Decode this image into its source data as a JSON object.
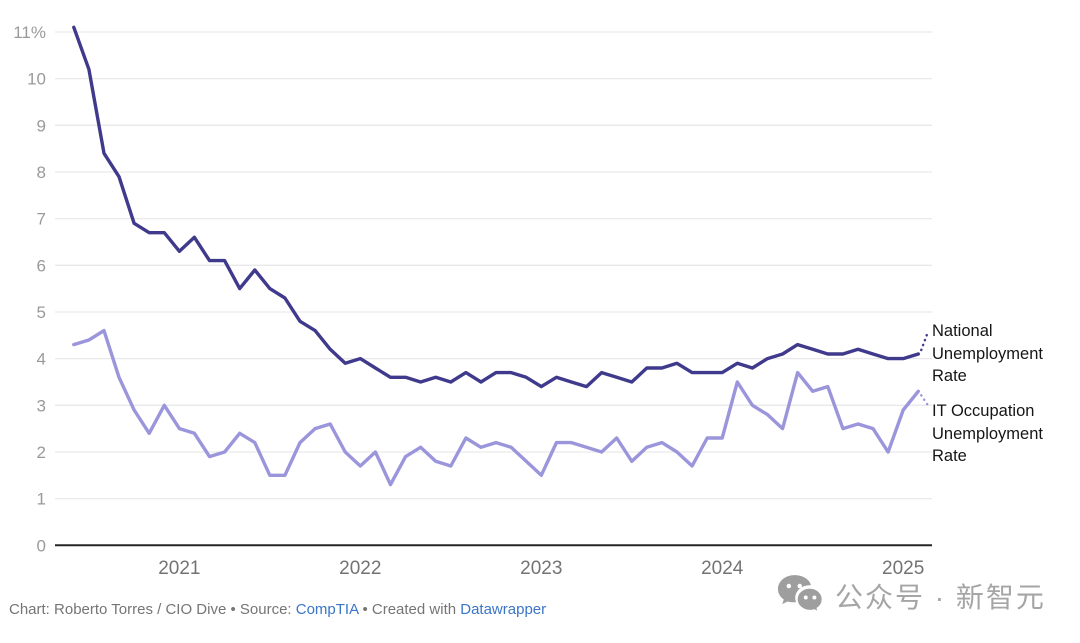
{
  "chart_data": {
    "type": "line",
    "title": "",
    "xlabel": "",
    "ylabel": "",
    "ylim": [
      0,
      11
    ],
    "grid": "horizontal",
    "legend_position": "right-edge-labels",
    "x_tick_labels": [
      "2021",
      "2022",
      "2023",
      "2024",
      "2025"
    ],
    "y_tick_labels": [
      "0",
      "1",
      "2",
      "3",
      "4",
      "5",
      "6",
      "7",
      "8",
      "9",
      "10",
      "11%"
    ],
    "months": [
      "2020-06",
      "2020-07",
      "2020-08",
      "2020-09",
      "2020-10",
      "2020-11",
      "2020-12",
      "2021-01",
      "2021-02",
      "2021-03",
      "2021-04",
      "2021-05",
      "2021-06",
      "2021-07",
      "2021-08",
      "2021-09",
      "2021-10",
      "2021-11",
      "2021-12",
      "2022-01",
      "2022-02",
      "2022-03",
      "2022-04",
      "2022-05",
      "2022-06",
      "2022-07",
      "2022-08",
      "2022-09",
      "2022-10",
      "2022-11",
      "2022-12",
      "2023-01",
      "2023-02",
      "2023-03",
      "2023-04",
      "2023-05",
      "2023-06",
      "2023-07",
      "2023-08",
      "2023-09",
      "2023-10",
      "2023-11",
      "2023-12",
      "2024-01",
      "2024-02",
      "2024-03",
      "2024-04",
      "2024-05",
      "2024-06",
      "2024-07",
      "2024-08",
      "2024-09",
      "2024-10",
      "2024-11",
      "2024-12",
      "2025-01",
      "2025-02"
    ],
    "series": [
      {
        "name": "National Unemployment Rate",
        "color": "#3f3a8c",
        "values": [
          11.1,
          10.2,
          8.4,
          7.9,
          6.9,
          6.7,
          6.7,
          6.3,
          6.6,
          6.1,
          6.1,
          5.5,
          5.9,
          5.5,
          5.3,
          4.8,
          4.6,
          4.2,
          3.9,
          4.0,
          3.8,
          3.6,
          3.6,
          3.5,
          3.6,
          3.5,
          3.7,
          3.5,
          3.7,
          3.7,
          3.6,
          3.4,
          3.6,
          3.5,
          3.4,
          3.7,
          3.6,
          3.5,
          3.8,
          3.8,
          3.9,
          3.7,
          3.7,
          3.7,
          3.9,
          3.8,
          4.0,
          4.1,
          4.3,
          4.2,
          4.1,
          4.1,
          4.2,
          4.1,
          4.0,
          4.0,
          4.1
        ]
      },
      {
        "name": "IT Occupation Unemployment Rate",
        "color": "#9b95dc",
        "values": [
          4.3,
          4.4,
          4.6,
          3.6,
          2.9,
          2.4,
          3.0,
          2.5,
          2.4,
          1.9,
          2.0,
          2.4,
          2.2,
          1.5,
          1.5,
          2.2,
          2.5,
          2.6,
          2.0,
          1.7,
          2.0,
          1.3,
          1.9,
          2.1,
          1.8,
          1.7,
          2.3,
          2.1,
          2.2,
          2.1,
          1.8,
          1.5,
          2.2,
          2.2,
          2.1,
          2.0,
          2.3,
          1.8,
          2.1,
          2.2,
          2.0,
          1.7,
          2.3,
          2.3,
          3.5,
          3.0,
          2.8,
          2.5,
          3.7,
          3.3,
          3.4,
          2.5,
          2.6,
          2.5,
          2.0,
          2.9,
          3.3
        ]
      }
    ]
  },
  "footer": {
    "prefix": "Chart: Roberto Torres / CIO Dive • Source: ",
    "source_link": "CompTIA",
    "middle": " • Created with ",
    "tool_link": "Datawrapper"
  },
  "watermark": {
    "text": "公众号 · 新智元"
  },
  "colors": {
    "grid": "#e9e9e9",
    "baseline": "#262626",
    "y_tick": "#9a9a9a",
    "x_tick": "#737373",
    "watermark": "#a0a0a0"
  }
}
